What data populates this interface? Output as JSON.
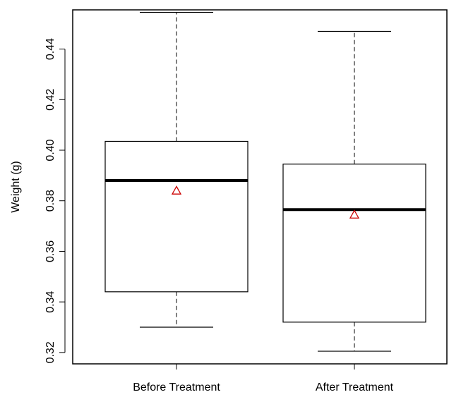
{
  "chart_data": {
    "type": "box",
    "title": "",
    "xlabel": "",
    "ylabel": "Weight (g)",
    "ylim": [
      0.3155,
      0.4555
    ],
    "yticks": [
      0.32,
      0.34,
      0.36,
      0.38,
      0.4,
      0.42,
      0.44
    ],
    "ytick_labels": [
      "0.32",
      "0.34",
      "0.36",
      "0.38",
      "0.40",
      "0.42",
      "0.44"
    ],
    "categories": [
      "Before Treatment",
      "After Treatment"
    ],
    "boxes": [
      {
        "category": "Before Treatment",
        "min": 0.33,
        "q1": 0.344,
        "median": 0.388,
        "q3": 0.4035,
        "max": 0.4545,
        "mean": 0.384
      },
      {
        "category": "After Treatment",
        "min": 0.3205,
        "q1": 0.332,
        "median": 0.3765,
        "q3": 0.3945,
        "max": 0.447,
        "mean": 0.3745
      }
    ],
    "grid": false,
    "colors": {
      "box": "#000000",
      "mean_marker": "#cc0000"
    }
  }
}
